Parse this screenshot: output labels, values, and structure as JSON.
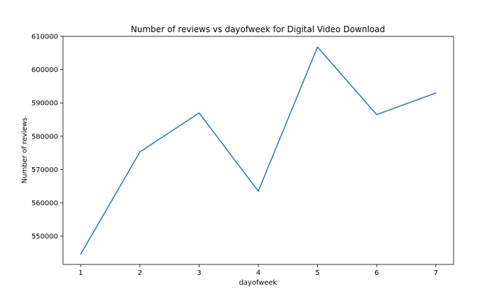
{
  "chart_data": {
    "type": "line",
    "title": "Number of reviews vs dayofweek for Digital Video Download",
    "xlabel": "dayofweek",
    "ylabel": "Number of reviews",
    "x": [
      1,
      2,
      3,
      4,
      5,
      6,
      7
    ],
    "xticks": [
      "1",
      "2",
      "3",
      "4",
      "5",
      "6",
      "7"
    ],
    "xlim": [
      0.7,
      7.3
    ],
    "ylim": [
      541500,
      610000
    ],
    "yticks": [
      550000,
      560000,
      570000,
      580000,
      590000,
      600000,
      610000
    ],
    "ytick_labels": [
      "550000",
      "560000",
      "570000",
      "580000",
      "590000",
      "600000",
      "610000"
    ],
    "series": [
      {
        "values": [
          544600,
          575300,
          587000,
          563500,
          606800,
          586500,
          593000
        ],
        "color": "#1f77b4"
      }
    ],
    "grid": false,
    "legend": "none"
  }
}
